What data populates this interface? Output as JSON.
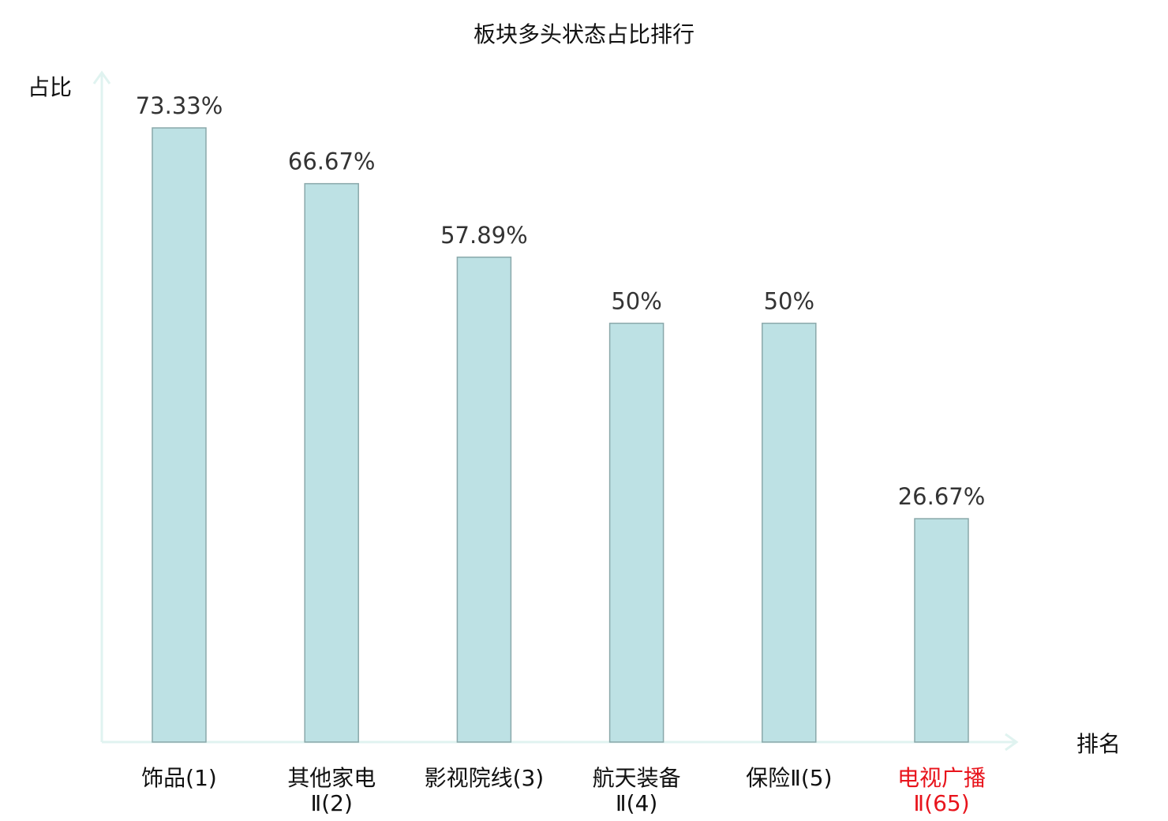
{
  "chart_data": {
    "type": "bar",
    "title": "板块多头状态占比排行",
    "ylabel": "占比",
    "xlabel": "排名",
    "categories": [
      {
        "lines": [
          "饰品(1)"
        ],
        "highlight": false
      },
      {
        "lines": [
          "其他家电",
          "Ⅱ(2)"
        ],
        "highlight": false
      },
      {
        "lines": [
          "影视院线(3)"
        ],
        "highlight": false
      },
      {
        "lines": [
          "航天装备",
          "Ⅱ(4)"
        ],
        "highlight": false
      },
      {
        "lines": [
          "保险Ⅱ(5)"
        ],
        "highlight": false
      },
      {
        "lines": [
          "电视广播",
          "Ⅱ(65)"
        ],
        "highlight": true
      }
    ],
    "values": [
      73.33,
      66.67,
      57.89,
      50,
      50,
      26.67
    ],
    "value_labels": [
      "73.33%",
      "66.67%",
      "57.89%",
      "50%",
      "50%",
      "26.67%"
    ],
    "ylim": [
      0,
      73.33
    ],
    "grid": false,
    "colors": {
      "bar_fill": "#bde1e4",
      "bar_stroke": "#8aa8aa",
      "axis": "#e0f3f0",
      "text": "#333333",
      "highlight": "#e8141c"
    }
  }
}
